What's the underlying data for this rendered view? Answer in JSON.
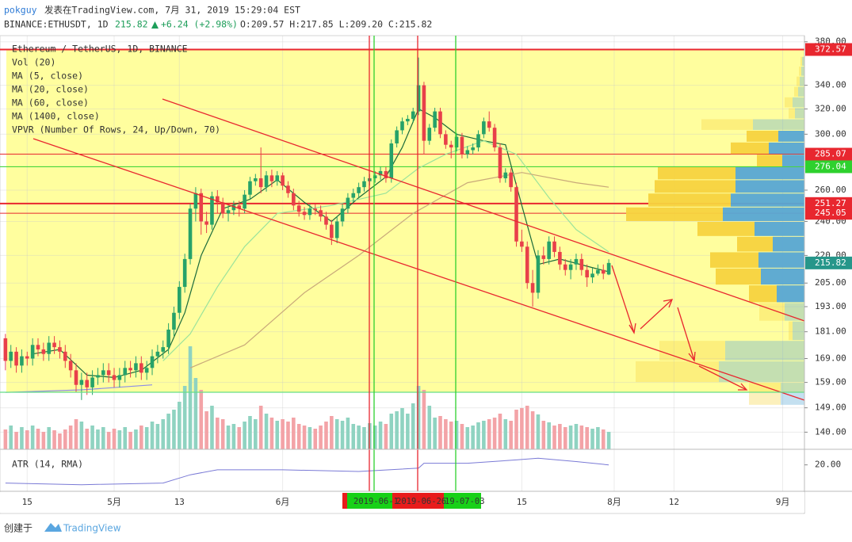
{
  "header": {
    "user": "pokguy",
    "published": "发表在TradingView.com, 7月 31, 2019 15:29:04 EST",
    "symbol": "BINANCE:ETHUSDT, 1D",
    "last": "215.82",
    "change": "+6.24 (+2.98%)",
    "ohlc": "O:209.57 H:217.85 L:209.20 C:215.82"
  },
  "footer": {
    "created": "创建于",
    "brand": "TradingView"
  },
  "date_marks": [
    "2019-06-1",
    "2019-06-26",
    "19-07-03"
  ],
  "chart_data": {
    "type": "candlestick",
    "title": "Ethereum / TetherUS, 1D, BINANCE",
    "log_scale": true,
    "grid": true,
    "up_color": "#26a269",
    "down_color": "#e8404a",
    "up_volume_color": "#8fd3c1",
    "down_volume_color": "#f3a3a7",
    "xlim": [
      "2019-04-10",
      "2019-09-05"
    ],
    "xticks": [
      {
        "value": "2019-04-15",
        "label": "15"
      },
      {
        "value": "2019-05-01",
        "label": "5月"
      },
      {
        "value": "2019-05-13",
        "label": "13"
      },
      {
        "value": "2019-06-01",
        "label": "6月"
      },
      {
        "value": "2019-07-15",
        "label": "15"
      },
      {
        "value": "2019-08-01",
        "label": "8月"
      },
      {
        "value": "2019-08-12",
        "label": "12"
      },
      {
        "value": "2019-09-01",
        "label": "9月"
      }
    ],
    "ylim": [
      134,
      386
    ],
    "yticks": [
      {
        "value": 380,
        "label": "380.00"
      },
      {
        "value": 340,
        "label": "340.00"
      },
      {
        "value": 320,
        "label": "320.00"
      },
      {
        "value": 300,
        "label": "300.00"
      },
      {
        "value": 260,
        "label": "260.00"
      },
      {
        "value": 240,
        "label": "240.00"
      },
      {
        "value": 220,
        "label": "220.00"
      },
      {
        "value": 205,
        "label": "205.00"
      },
      {
        "value": 193,
        "label": "193.00"
      },
      {
        "value": 181,
        "label": "181.00"
      },
      {
        "value": 169,
        "label": "169.00"
      },
      {
        "value": 159,
        "label": "159.00"
      },
      {
        "value": 149,
        "label": "149.00"
      },
      {
        "value": 140,
        "label": "140.00"
      }
    ],
    "dates": [
      "2019-04-11",
      "2019-04-12",
      "2019-04-13",
      "2019-04-14",
      "2019-04-15",
      "2019-04-16",
      "2019-04-17",
      "2019-04-18",
      "2019-04-19",
      "2019-04-20",
      "2019-04-21",
      "2019-04-22",
      "2019-04-23",
      "2019-04-24",
      "2019-04-25",
      "2019-04-26",
      "2019-04-27",
      "2019-04-28",
      "2019-04-29",
      "2019-04-30",
      "2019-05-01",
      "2019-05-02",
      "2019-05-03",
      "2019-05-04",
      "2019-05-05",
      "2019-05-06",
      "2019-05-07",
      "2019-05-08",
      "2019-05-09",
      "2019-05-10",
      "2019-05-11",
      "2019-05-12",
      "2019-05-13",
      "2019-05-14",
      "2019-05-15",
      "2019-05-16",
      "2019-05-17",
      "2019-05-18",
      "2019-05-19",
      "2019-05-20",
      "2019-05-21",
      "2019-05-22",
      "2019-05-23",
      "2019-05-24",
      "2019-05-25",
      "2019-05-26",
      "2019-05-27",
      "2019-05-28",
      "2019-05-29",
      "2019-05-30",
      "2019-05-31",
      "2019-06-01",
      "2019-06-02",
      "2019-06-03",
      "2019-06-04",
      "2019-06-05",
      "2019-06-06",
      "2019-06-07",
      "2019-06-08",
      "2019-06-09",
      "2019-06-10",
      "2019-06-11",
      "2019-06-12",
      "2019-06-13",
      "2019-06-14",
      "2019-06-15",
      "2019-06-16",
      "2019-06-17",
      "2019-06-18",
      "2019-06-19",
      "2019-06-20",
      "2019-06-21",
      "2019-06-22",
      "2019-06-23",
      "2019-06-24",
      "2019-06-25",
      "2019-06-26",
      "2019-06-27",
      "2019-06-28",
      "2019-06-29",
      "2019-06-30",
      "2019-07-01",
      "2019-07-02",
      "2019-07-03",
      "2019-07-04",
      "2019-07-05",
      "2019-07-06",
      "2019-07-07",
      "2019-07-08",
      "2019-07-09",
      "2019-07-10",
      "2019-07-11",
      "2019-07-12",
      "2019-07-13",
      "2019-07-14",
      "2019-07-15",
      "2019-07-16",
      "2019-07-17",
      "2019-07-18",
      "2019-07-19",
      "2019-07-20",
      "2019-07-21",
      "2019-07-22",
      "2019-07-23",
      "2019-07-24",
      "2019-07-25",
      "2019-07-26",
      "2019-07-27",
      "2019-07-28",
      "2019-07-29",
      "2019-07-30",
      "2019-07-31"
    ],
    "open": [
      178,
      168,
      172,
      166,
      170,
      169,
      175,
      173,
      171,
      176,
      174,
      172,
      168,
      164,
      158,
      160,
      157,
      161,
      162,
      164,
      162,
      160,
      162,
      165,
      164,
      167,
      163,
      165,
      170,
      172,
      174,
      182,
      190,
      203,
      218,
      248,
      258,
      240,
      238,
      256,
      252,
      245,
      247,
      250,
      248,
      257,
      266,
      268,
      262,
      270,
      266,
      270,
      263,
      258,
      250,
      246,
      244,
      248,
      247,
      243,
      238,
      230,
      240,
      248,
      255,
      258,
      262,
      266,
      268,
      270,
      273,
      268,
      293,
      303,
      310,
      312,
      318,
      340,
      295,
      305,
      318,
      300,
      292,
      290,
      298,
      285,
      288,
      290,
      300,
      310,
      305,
      290,
      268,
      272,
      262,
      228,
      225,
      205,
      200,
      220,
      218,
      228,
      222,
      215,
      212,
      215,
      218,
      212,
      208,
      210,
      212,
      209.57
    ],
    "high": [
      180,
      175,
      174,
      173,
      172,
      178,
      178,
      176,
      179,
      179,
      177,
      175,
      171,
      167,
      163,
      163,
      164,
      165,
      167,
      167,
      165,
      165,
      168,
      168,
      170,
      170,
      168,
      173,
      175,
      177,
      185,
      193,
      206,
      221,
      251,
      262,
      261,
      246,
      259,
      260,
      255,
      250,
      253,
      253,
      260,
      269,
      271,
      290,
      273,
      274,
      273,
      272,
      266,
      261,
      253,
      249,
      251,
      251,
      250,
      246,
      241,
      243,
      251,
      258,
      261,
      265,
      269,
      271,
      273,
      276,
      276,
      296,
      306,
      313,
      315,
      321,
      365,
      343,
      308,
      321,
      321,
      303,
      295,
      301,
      301,
      291,
      293,
      303,
      313,
      318,
      308,
      293,
      275,
      275,
      265,
      235,
      228,
      212,
      223,
      225,
      231,
      231,
      225,
      218,
      218,
      221,
      221,
      215,
      213,
      215,
      215,
      217.85
    ],
    "low": [
      164,
      165,
      163,
      163,
      166,
      166,
      170,
      168,
      168,
      171,
      169,
      165,
      161,
      155,
      152,
      154,
      154,
      158,
      159,
      159,
      157,
      157,
      159,
      161,
      161,
      160,
      160,
      162,
      167,
      169,
      171,
      179,
      187,
      200,
      215,
      240,
      232,
      233,
      235,
      245,
      242,
      240,
      244,
      243,
      245,
      254,
      263,
      258,
      259,
      262,
      263,
      260,
      255,
      247,
      243,
      241,
      241,
      244,
      240,
      235,
      226,
      227,
      237,
      245,
      252,
      255,
      259,
      263,
      265,
      267,
      265,
      265,
      290,
      300,
      307,
      309,
      315,
      285,
      292,
      302,
      297,
      289,
      282,
      287,
      282,
      282,
      285,
      287,
      297,
      302,
      287,
      265,
      265,
      259,
      225,
      222,
      202,
      193,
      197,
      215,
      215,
      219,
      212,
      209,
      207,
      212,
      209,
      203,
      205,
      209,
      207,
      209.2
    ],
    "close": [
      168,
      172,
      166,
      170,
      169,
      175,
      173,
      171,
      176,
      174,
      172,
      168,
      164,
      158,
      160,
      157,
      161,
      162,
      164,
      162,
      160,
      162,
      165,
      164,
      167,
      163,
      165,
      170,
      172,
      174,
      182,
      190,
      203,
      218,
      248,
      258,
      240,
      238,
      256,
      252,
      245,
      247,
      250,
      248,
      257,
      266,
      268,
      262,
      270,
      266,
      270,
      263,
      258,
      250,
      246,
      244,
      248,
      247,
      243,
      238,
      230,
      240,
      248,
      255,
      258,
      262,
      266,
      268,
      270,
      273,
      268,
      293,
      303,
      310,
      312,
      318,
      340,
      295,
      305,
      318,
      300,
      292,
      290,
      298,
      285,
      288,
      290,
      300,
      310,
      305,
      290,
      268,
      272,
      262,
      228,
      225,
      205,
      200,
      220,
      218,
      228,
      222,
      215,
      212,
      215,
      218,
      212,
      208,
      210,
      212,
      210,
      215.82
    ],
    "volume": {
      "name": "Vol (20)",
      "ylim": [
        0,
        140
      ],
      "values": [
        25,
        30,
        22,
        28,
        24,
        30,
        26,
        22,
        28,
        24,
        20,
        25,
        30,
        38,
        35,
        26,
        30,
        25,
        28,
        22,
        26,
        24,
        28,
        22,
        25,
        30,
        28,
        35,
        32,
        38,
        45,
        50,
        60,
        80,
        130,
        90,
        75,
        48,
        55,
        40,
        38,
        30,
        32,
        28,
        35,
        42,
        38,
        55,
        45,
        40,
        36,
        38,
        35,
        40,
        32,
        30,
        28,
        26,
        30,
        35,
        42,
        38,
        36,
        40,
        32,
        30,
        28,
        33,
        30,
        35,
        32,
        45,
        48,
        52,
        45,
        58,
        80,
        75,
        55,
        40,
        42,
        38,
        35,
        36,
        32,
        28,
        30,
        34,
        36,
        38,
        40,
        45,
        38,
        36,
        50,
        52,
        55,
        48,
        44,
        36,
        34,
        30,
        32,
        28,
        30,
        32,
        30,
        28,
        26,
        28,
        25,
        22
      ]
    },
    "ma": [
      {
        "name": "MA (5, close)",
        "color": "#1b6b3a",
        "x": [
          "2019-04-16",
          "2019-04-21",
          "2019-04-26",
          "2019-05-01",
          "2019-05-06",
          "2019-05-11",
          "2019-05-14",
          "2019-05-17",
          "2019-05-21",
          "2019-05-26",
          "2019-05-31",
          "2019-06-05",
          "2019-06-10",
          "2019-06-15",
          "2019-06-20",
          "2019-06-23",
          "2019-06-26",
          "2019-06-29",
          "2019-07-03",
          "2019-07-08",
          "2019-07-12",
          "2019-07-15",
          "2019-07-18",
          "2019-07-22",
          "2019-07-27",
          "2019-07-31"
        ],
        "values": [
          171,
          173,
          162,
          161,
          164,
          173,
          190,
          220,
          248,
          254,
          267,
          252,
          240,
          255,
          269,
          290,
          320,
          313,
          300,
          295,
          292,
          250,
          215,
          218,
          214,
          211
        ]
      },
      {
        "name": "MA (20, close)",
        "color": "#9be39b",
        "x": [
          "2019-05-10",
          "2019-05-15",
          "2019-05-20",
          "2019-05-25",
          "2019-05-31",
          "2019-06-10",
          "2019-06-20",
          "2019-06-26",
          "2019-07-01",
          "2019-07-08",
          "2019-07-14",
          "2019-07-20",
          "2019-07-25",
          "2019-07-31"
        ],
        "values": [
          168,
          180,
          203,
          225,
          245,
          250,
          258,
          275,
          285,
          295,
          285,
          255,
          235,
          222
        ]
      },
      {
        "name": "MA (60, close)",
        "color": "#c9a97a",
        "x": [
          "2019-05-15",
          "2019-05-25",
          "2019-06-05",
          "2019-06-15",
          "2019-06-25",
          "2019-07-05",
          "2019-07-15",
          "2019-07-25",
          "2019-07-31"
        ],
        "values": [
          165,
          175,
          200,
          220,
          245,
          265,
          272,
          265,
          262
        ]
      },
      {
        "name": "MA (1400, close)",
        "color": "#8c8ce8",
        "x": [
          "2019-04-11",
          "2019-04-25",
          "2019-05-08"
        ],
        "values": [
          155,
          156,
          158
        ]
      }
    ],
    "vpvr": {
      "name": "VPVR (Number Of Rows, 24, Up/Down, 70)",
      "up_color": "#f7d33f",
      "down_color": "#57a7d4",
      "edges": [
        150,
        159,
        168,
        177,
        186,
        195,
        204,
        213,
        222,
        231,
        240,
        249,
        258,
        267,
        276,
        285,
        294,
        303,
        312,
        321,
        330,
        339,
        348,
        357,
        366
      ],
      "up": [
        40,
        105,
        83,
        5,
        32,
        35,
        57,
        61,
        45,
        72,
        122,
        104,
        102,
        98,
        32,
        48,
        40,
        65,
        8,
        10,
        5,
        4,
        3,
        2
      ],
      "down": [
        30,
        108,
        100,
        15,
        25,
        35,
        55,
        58,
        40,
        63,
        103,
        93,
        87,
        87,
        28,
        45,
        33,
        65,
        12,
        15,
        8,
        6,
        4,
        3
      ],
      "value_area": [
        false,
        false,
        false,
        false,
        false,
        true,
        true,
        true,
        true,
        true,
        true,
        true,
        true,
        true,
        true,
        true,
        true,
        false,
        false,
        false,
        false,
        false,
        false,
        false
      ]
    },
    "hlines": [
      {
        "value": 372.57,
        "color": "#e8272f",
        "width": 2
      },
      {
        "value": 285.07,
        "color": "#e8272f",
        "width": 1
      },
      {
        "value": 276.04,
        "color": "#2ed12e",
        "width": 1
      },
      {
        "value": 251.27,
        "color": "#e8272f",
        "width": 2
      },
      {
        "value": 245.05,
        "color": "#e8272f",
        "width": 1
      }
    ],
    "last_price_color": "#26968a",
    "atr": {
      "name": "ATR (14, RMA)",
      "color": "#7a7ad6",
      "ylim": [
        12,
        24
      ],
      "yticks": [
        {
          "value": 20,
          "label": "20.00"
        }
      ],
      "x": [
        "2019-04-11",
        "2019-04-25",
        "2019-05-10",
        "2019-05-15",
        "2019-05-20",
        "2019-06-01",
        "2019-06-15",
        "2019-06-26",
        "2019-06-27",
        "2019-07-05",
        "2019-07-14",
        "2019-07-18",
        "2019-07-25",
        "2019-07-31"
      ],
      "values": [
        14.5,
        14,
        14.5,
        17,
        18.5,
        18.5,
        18,
        19,
        20.5,
        20.5,
        21.5,
        22,
        21,
        20
      ]
    }
  }
}
